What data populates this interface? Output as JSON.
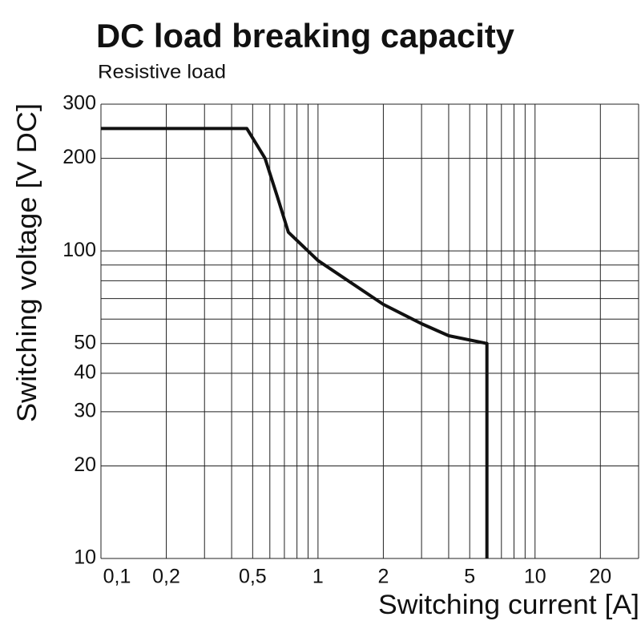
{
  "chart_data": {
    "type": "line",
    "title": "DC load breaking capacity",
    "subtitle": "Resistive load",
    "x_label": "Switching current [A]",
    "y_label": "Switching voltage [V DC]",
    "x_scale": "log",
    "y_scale": "log",
    "grid": true,
    "xlim": [
      0.1,
      30
    ],
    "ylim": [
      10,
      300
    ],
    "xticks": [
      {
        "value": 0.1,
        "label": "0,1"
      },
      {
        "value": 0.2,
        "label": "0,2"
      },
      {
        "value": 0.5,
        "label": "0,5"
      },
      1,
      2,
      5,
      10,
      20
    ],
    "yticks": [
      10,
      20,
      30,
      40,
      50,
      100,
      200,
      300
    ],
    "xgrid": [
      0.1,
      0.2,
      0.3,
      0.4,
      0.5,
      0.6,
      0.7,
      0.8,
      0.9,
      1,
      2,
      3,
      4,
      5,
      6,
      7,
      8,
      9,
      10,
      20,
      30
    ],
    "ygrid": [
      10,
      20,
      30,
      40,
      50,
      60,
      70,
      80,
      90,
      100,
      200,
      300
    ],
    "series": [
      {
        "color": "#111111",
        "x": [
          0.1,
          0.47,
          0.57,
          0.65,
          0.73,
          1,
          2,
          3,
          4,
          6,
          6
        ],
        "values": [
          250,
          250,
          200,
          150,
          115,
          93,
          67,
          58,
          53,
          50,
          10
        ]
      }
    ]
  }
}
